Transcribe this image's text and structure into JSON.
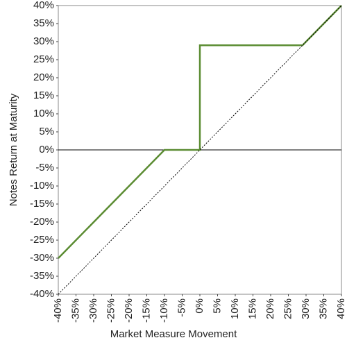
{
  "chart_data": {
    "type": "line",
    "xlabel": "Market Measure Movement",
    "ylabel": "Notes Return at Maturity",
    "series": [
      {
        "x": [
          -40,
          -10,
          0,
          0,
          29,
          40
        ],
        "values": [
          -30,
          0,
          0,
          29,
          29,
          40
        ],
        "color": "#5b8c32",
        "style": "solid"
      },
      {
        "x": [
          -40,
          40
        ],
        "values": [
          -40,
          40
        ],
        "color": "#000000",
        "style": "dotted"
      }
    ],
    "xlim": [
      -40,
      40
    ],
    "ylim": [
      -40,
      40
    ],
    "xticks": [
      {
        "value": -40,
        "label": "-40%"
      },
      {
        "value": -35,
        "label": "-35%"
      },
      {
        "value": -30,
        "label": "-30%"
      },
      {
        "value": -25,
        "label": "-25%"
      },
      {
        "value": -20,
        "label": "-20%"
      },
      {
        "value": -15,
        "label": "-15%"
      },
      {
        "value": -10,
        "label": "-10%"
      },
      {
        "value": -5,
        "label": "-5%"
      },
      {
        "value": 0,
        "label": "0%"
      },
      {
        "value": 5,
        "label": "5%"
      },
      {
        "value": 10,
        "label": "10%"
      },
      {
        "value": 15,
        "label": "15%"
      },
      {
        "value": 20,
        "label": "20%"
      },
      {
        "value": 25,
        "label": "25%"
      },
      {
        "value": 30,
        "label": "30%"
      },
      {
        "value": 35,
        "label": "35%"
      },
      {
        "value": 40,
        "label": "40%"
      }
    ],
    "yticks": [
      {
        "value": -40,
        "label": "-40%"
      },
      {
        "value": -35,
        "label": "-35%"
      },
      {
        "value": -30,
        "label": "-30%"
      },
      {
        "value": -25,
        "label": "-25%"
      },
      {
        "value": -20,
        "label": "-20%"
      },
      {
        "value": -15,
        "label": "-15%"
      },
      {
        "value": -10,
        "label": "-10%"
      },
      {
        "value": -5,
        "label": "-5%"
      },
      {
        "value": 0,
        "label": "0%"
      },
      {
        "value": 5,
        "label": "5%"
      },
      {
        "value": 10,
        "label": "10%"
      },
      {
        "value": 15,
        "label": "15%"
      },
      {
        "value": 20,
        "label": "20%"
      },
      {
        "value": 25,
        "label": "25%"
      },
      {
        "value": 30,
        "label": "30%"
      },
      {
        "value": 35,
        "label": "35%"
      },
      {
        "value": 40,
        "label": "40%"
      }
    ],
    "grid": false
  }
}
